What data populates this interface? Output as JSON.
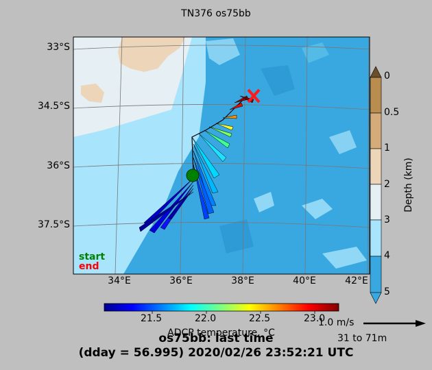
{
  "title": "TN376 os75bb",
  "map": {
    "lat_labels": [
      "33°S",
      "34.5°S",
      "36°S",
      "37.5°S"
    ],
    "lon_labels": [
      "34°E",
      "36°E",
      "38°E",
      "40°E",
      "42°E"
    ],
    "legend": {
      "start": "start",
      "end": "end",
      "start_color": "#008000",
      "end_color": "#ff0000"
    }
  },
  "depth_colorbar": {
    "label": "Depth (km)",
    "ticks": [
      "0",
      "0.5",
      "1",
      "2",
      "3",
      "4",
      "5"
    ],
    "colors": [
      "#b98c4f",
      "#d4ac7a",
      "#ecd5b8",
      "#e6eff4",
      "#a8e4fb",
      "#3aa8e0"
    ]
  },
  "temp_colorbar": {
    "label": "ADCP temperature, °C",
    "ticks": [
      "21.5",
      "22.0",
      "22.5",
      "23.0"
    ],
    "range": [
      21.0,
      23.3
    ]
  },
  "scale_arrow": {
    "speed": "1.0 m/s",
    "depth_range": "31 to 71m"
  },
  "bottom_title": {
    "line1": "os75bb: last time",
    "line2": "(dday = 56.995) 2020/02/26 23:52:21 UTC"
  }
}
